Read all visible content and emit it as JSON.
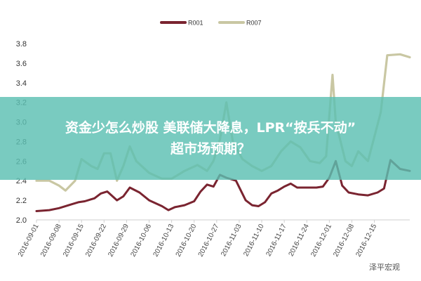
{
  "headline": {
    "line1": "资金少怎么炒股 美联储大降息，LPR“按兵不动”",
    "line2": "超市场预期？"
  },
  "watermark": "泽平宏观",
  "chart_data": {
    "type": "line",
    "title": "",
    "xlabel": "",
    "ylabel": "",
    "ylim": [
      2.0,
      3.8
    ],
    "yticks": [
      "2.0",
      "2.2",
      "2.4",
      "2.6",
      "2.8",
      "3.0",
      "3.2",
      "3.4",
      "3.6",
      "3.8"
    ],
    "xlim": [
      "2016-09-01",
      "2016-12-26"
    ],
    "xticks": [
      "2016-09-01",
      "2016-09-08",
      "2016-09-15",
      "2016-09-22",
      "2016-09-29",
      "2016-10-06",
      "2016-10-13",
      "2016-10-20",
      "2016-10-27",
      "2016-11-03",
      "2016-11-10",
      "2016-11-17",
      "2016-11-24",
      "2016-12-01",
      "2016-12-08",
      "2016-12-15"
    ],
    "legend_position": "top-center",
    "grid": false,
    "series": [
      {
        "name": "R001",
        "color": "#7a2430",
        "points": [
          [
            "2016-09-01",
            2.09
          ],
          [
            "2016-09-05",
            2.1
          ],
          [
            "2016-09-08",
            2.12
          ],
          [
            "2016-09-12",
            2.16
          ],
          [
            "2016-09-14",
            2.18
          ],
          [
            "2016-09-16",
            2.19
          ],
          [
            "2016-09-19",
            2.22
          ],
          [
            "2016-09-21",
            2.27
          ],
          [
            "2016-09-23",
            2.29
          ],
          [
            "2016-09-26",
            2.2
          ],
          [
            "2016-09-28",
            2.24
          ],
          [
            "2016-09-30",
            2.33
          ],
          [
            "2016-10-03",
            2.28
          ],
          [
            "2016-10-06",
            2.2
          ],
          [
            "2016-10-10",
            2.14
          ],
          [
            "2016-10-12",
            2.1
          ],
          [
            "2016-10-14",
            2.13
          ],
          [
            "2016-10-17",
            2.15
          ],
          [
            "2016-10-20",
            2.19
          ],
          [
            "2016-10-22",
            2.29
          ],
          [
            "2016-10-24",
            2.36
          ],
          [
            "2016-10-26",
            2.34
          ],
          [
            "2016-10-28",
            2.46
          ],
          [
            "2016-10-30",
            2.43
          ],
          [
            "2016-11-02",
            2.4
          ],
          [
            "2016-11-05",
            2.2
          ],
          [
            "2016-11-07",
            2.15
          ],
          [
            "2016-11-09",
            2.14
          ],
          [
            "2016-11-11",
            2.18
          ],
          [
            "2016-11-13",
            2.27
          ],
          [
            "2016-11-15",
            2.3
          ],
          [
            "2016-11-17",
            2.34
          ],
          [
            "2016-11-19",
            2.37
          ],
          [
            "2016-11-21",
            2.33
          ],
          [
            "2016-11-24",
            2.33
          ],
          [
            "2016-11-27",
            2.33
          ],
          [
            "2016-11-29",
            2.34
          ],
          [
            "2016-12-01",
            2.43
          ],
          [
            "2016-12-03",
            2.6
          ],
          [
            "2016-12-05",
            2.35
          ],
          [
            "2016-12-07",
            2.28
          ],
          [
            "2016-12-10",
            2.26
          ],
          [
            "2016-12-13",
            2.25
          ],
          [
            "2016-12-16",
            2.28
          ],
          [
            "2016-12-18",
            2.32
          ],
          [
            "2016-12-20",
            2.61
          ],
          [
            "2016-12-23",
            2.52
          ],
          [
            "2016-12-26",
            2.5
          ]
        ]
      },
      {
        "name": "R007",
        "color": "#c9c7a3",
        "points": [
          [
            "2016-09-01",
            2.4
          ],
          [
            "2016-09-05",
            2.4
          ],
          [
            "2016-09-08",
            2.35
          ],
          [
            "2016-09-10",
            2.3
          ],
          [
            "2016-09-13",
            2.4
          ],
          [
            "2016-09-15",
            2.62
          ],
          [
            "2016-09-18",
            2.55
          ],
          [
            "2016-09-20",
            2.52
          ],
          [
            "2016-09-22",
            2.68
          ],
          [
            "2016-09-24",
            2.68
          ],
          [
            "2016-09-26",
            2.4
          ],
          [
            "2016-09-28",
            2.55
          ],
          [
            "2016-09-30",
            2.75
          ],
          [
            "2016-10-02",
            2.6
          ],
          [
            "2016-10-06",
            2.48
          ],
          [
            "2016-10-10",
            2.42
          ],
          [
            "2016-10-13",
            2.42
          ],
          [
            "2016-10-17",
            2.5
          ],
          [
            "2016-10-21",
            2.56
          ],
          [
            "2016-10-24",
            2.5
          ],
          [
            "2016-10-26",
            2.6
          ],
          [
            "2016-10-28",
            2.82
          ],
          [
            "2016-10-30",
            3.2
          ],
          [
            "2016-11-01",
            2.8
          ],
          [
            "2016-11-04",
            2.62
          ],
          [
            "2016-11-07",
            2.55
          ],
          [
            "2016-11-10",
            2.5
          ],
          [
            "2016-11-13",
            2.55
          ],
          [
            "2016-11-16",
            2.7
          ],
          [
            "2016-11-19",
            2.8
          ],
          [
            "2016-11-22",
            2.74
          ],
          [
            "2016-11-25",
            2.6
          ],
          [
            "2016-11-28",
            2.58
          ],
          [
            "2016-11-30",
            2.65
          ],
          [
            "2016-12-02",
            3.48
          ],
          [
            "2016-12-03",
            3.0
          ],
          [
            "2016-12-06",
            2.6
          ],
          [
            "2016-12-08",
            2.55
          ],
          [
            "2016-12-10",
            2.7
          ],
          [
            "2016-12-13",
            2.6
          ],
          [
            "2016-12-15",
            2.85
          ],
          [
            "2016-12-17",
            3.1
          ],
          [
            "2016-12-19",
            3.68
          ],
          [
            "2016-12-23",
            3.69
          ],
          [
            "2016-12-26",
            3.66
          ]
        ]
      }
    ]
  }
}
